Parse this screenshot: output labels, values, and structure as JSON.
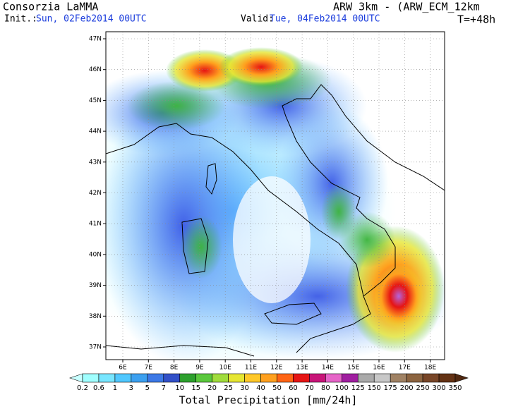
{
  "header": {
    "org": "Consorzia LaMMA",
    "init_label": "Init.:",
    "init_value": "Sun, 02Feb2014 00UTC",
    "valid_label": "Valid:",
    "valid_value": "Tue, 04Feb2014 00UTC",
    "model": "ARW 3km - (ARW_ECM_12km",
    "lead": "T=+48h"
  },
  "map": {
    "lat_labels": [
      "47N",
      "46N",
      "45N",
      "44N",
      "43N",
      "42N",
      "41N",
      "40N",
      "39N",
      "38N",
      "37N"
    ],
    "lon_labels": [
      "6E",
      "7E",
      "8E",
      "9E",
      "10E",
      "11E",
      "12E",
      "13E",
      "14E",
      "15E",
      "16E",
      "17E",
      "18E"
    ]
  },
  "colorbar": {
    "labels": [
      "0.2",
      "0.6",
      "1",
      "3",
      "5",
      "7",
      "10",
      "15",
      "20",
      "25",
      "30",
      "40",
      "50",
      "60",
      "70",
      "80",
      "100",
      "125",
      "150",
      "175",
      "200",
      "250",
      "300",
      "350"
    ],
    "title": "Total Precipitation [mm/24h]"
  }
}
